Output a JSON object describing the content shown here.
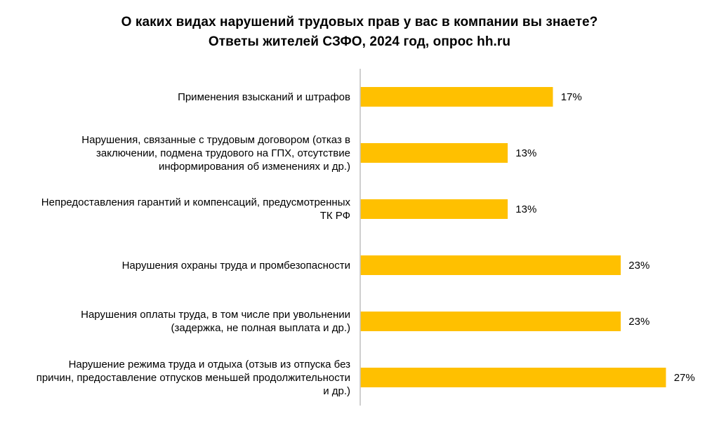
{
  "title": "О каких видах нарушений трудовых прав у вас в компании вы знаете?",
  "subtitle": "Ответы жителей СЗФО, 2024 год, опрос hh.ru",
  "chart_data": {
    "type": "bar",
    "orientation": "horizontal",
    "title": "О каких видах нарушений трудовых прав у вас в компании вы знаете?",
    "subtitle": "Ответы жителей СЗФО, 2024 год, опрос hh.ru",
    "categories": [
      "Применения взысканий и штрафов",
      "Нарушения, связанные с трудовым договором (отказ в заключении, подмена трудового на ГПХ, отсутствие информирования об изменениях и др.)",
      "Непредоставления гарантий и компенсаций, предусмотренных ТК РФ",
      "Нарушения охраны труда и промбезопасности",
      "Нарушения оплаты труда, в том числе при увольнении (задержка, не полная выплата и др.)",
      "Нарушение режима труда и отдыха (отзыв из отпуска без причин, предоставление отпусков меньшей продолжительности и др.)"
    ],
    "category_lines": [
      [
        "Применения взысканий и штрафов"
      ],
      [
        "Нарушения, связанные с трудовым договором (отказ в",
        "заключении, подмена трудового на ГПХ, отсутствие",
        "информирования об изменениях и др.)"
      ],
      [
        "Непредоставления гарантий и компенсаций, предусмотренных",
        "ТК РФ"
      ],
      [
        "Нарушения охраны труда и промбезопасности"
      ],
      [
        "Нарушения оплаты труда, в том числе при увольнении",
        "(задержка, не полная выплата и др.)"
      ],
      [
        "Нарушение режима труда и отдыха (отзыв из отпуска без",
        "причин, предоставление отпусков меньшей продолжительности",
        "и др.)"
      ]
    ],
    "values": [
      17,
      13,
      13,
      23,
      23,
      27
    ],
    "value_labels": [
      "17%",
      "13%",
      "13%",
      "23%",
      "23%",
      "27%"
    ],
    "unit": "%",
    "xlim": [
      0,
      30
    ],
    "bar_color": "#FFC000",
    "axis_color": "#BFBFBF",
    "grid": false,
    "legend": "none"
  }
}
